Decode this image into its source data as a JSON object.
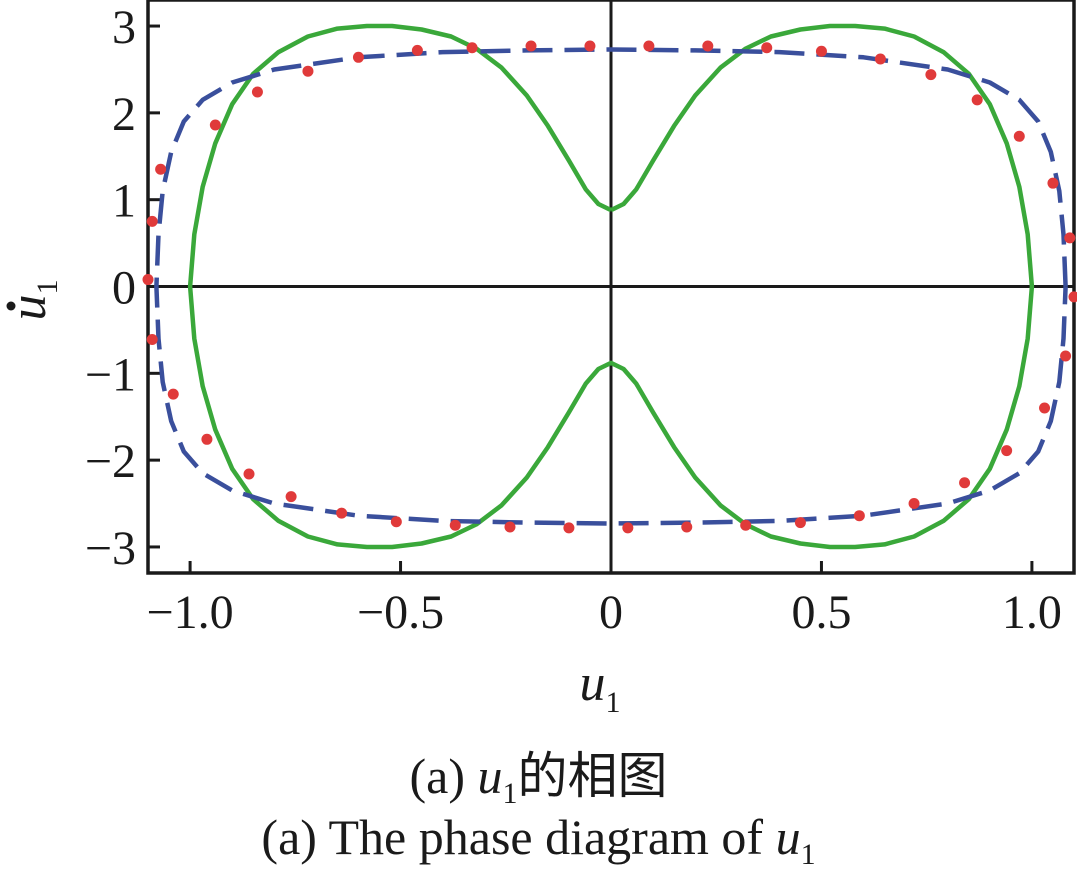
{
  "caption_zh": {
    "prefix": "(a) ",
    "var": "u",
    "sub": "1",
    "suffix": "的相图"
  },
  "caption_en": {
    "prefix": "(a) The phase diagram of ",
    "var": "u",
    "sub": "1"
  },
  "chart_data": {
    "type": "line",
    "title": "",
    "xlabel": {
      "var": "u",
      "sub": "1"
    },
    "ylabel": {
      "var": "u",
      "sub": "1",
      "dot": true
    },
    "xlim": [
      -1.1,
      1.1
    ],
    "ylim": [
      -3.3,
      3.3
    ],
    "xticks": [
      -1.0,
      -0.5,
      0,
      0.5,
      1.0
    ],
    "xtick_labels": [
      "−1.0",
      "−0.5",
      "0",
      "0.5",
      "1.0"
    ],
    "yticks": [
      3,
      2,
      1,
      0,
      -1,
      -2,
      -3
    ],
    "ytick_labels": [
      "3",
      "2",
      "1",
      "0",
      "−1",
      "−2",
      "−3"
    ],
    "grid": false,
    "series": [
      {
        "style": "solid",
        "color": "#3aa83a",
        "points": [
          [
            0,
            0.88
          ],
          [
            0.03,
            0.95
          ],
          [
            0.06,
            1.12
          ],
          [
            0.1,
            1.45
          ],
          [
            0.15,
            1.85
          ],
          [
            0.2,
            2.2
          ],
          [
            0.26,
            2.52
          ],
          [
            0.32,
            2.74
          ],
          [
            0.38,
            2.88
          ],
          [
            0.45,
            2.96
          ],
          [
            0.52,
            3.0
          ],
          [
            0.58,
            3.0
          ],
          [
            0.65,
            2.97
          ],
          [
            0.72,
            2.88
          ],
          [
            0.79,
            2.7
          ],
          [
            0.85,
            2.45
          ],
          [
            0.9,
            2.1
          ],
          [
            0.94,
            1.65
          ],
          [
            0.97,
            1.15
          ],
          [
            0.99,
            0.6
          ],
          [
            1.0,
            0
          ],
          [
            0.99,
            -0.6
          ],
          [
            0.97,
            -1.15
          ],
          [
            0.94,
            -1.65
          ],
          [
            0.9,
            -2.1
          ],
          [
            0.85,
            -2.45
          ],
          [
            0.79,
            -2.7
          ],
          [
            0.72,
            -2.88
          ],
          [
            0.65,
            -2.97
          ],
          [
            0.58,
            -3.0
          ],
          [
            0.52,
            -3.0
          ],
          [
            0.45,
            -2.96
          ],
          [
            0.38,
            -2.88
          ],
          [
            0.32,
            -2.74
          ],
          [
            0.26,
            -2.52
          ],
          [
            0.2,
            -2.2
          ],
          [
            0.15,
            -1.85
          ],
          [
            0.1,
            -1.45
          ],
          [
            0.06,
            -1.12
          ],
          [
            0.03,
            -0.95
          ],
          [
            0,
            -0.88
          ],
          [
            -0.03,
            -0.95
          ],
          [
            -0.06,
            -1.12
          ],
          [
            -0.1,
            -1.45
          ],
          [
            -0.15,
            -1.85
          ],
          [
            -0.2,
            -2.2
          ],
          [
            -0.26,
            -2.52
          ],
          [
            -0.32,
            -2.74
          ],
          [
            -0.38,
            -2.88
          ],
          [
            -0.45,
            -2.96
          ],
          [
            -0.52,
            -3.0
          ],
          [
            -0.58,
            -3.0
          ],
          [
            -0.65,
            -2.97
          ],
          [
            -0.72,
            -2.88
          ],
          [
            -0.79,
            -2.7
          ],
          [
            -0.85,
            -2.45
          ],
          [
            -0.9,
            -2.1
          ],
          [
            -0.94,
            -1.65
          ],
          [
            -0.97,
            -1.15
          ],
          [
            -0.99,
            -0.6
          ],
          [
            -1.0,
            0
          ],
          [
            -0.99,
            0.6
          ],
          [
            -0.97,
            1.15
          ],
          [
            -0.94,
            1.65
          ],
          [
            -0.9,
            2.1
          ],
          [
            -0.85,
            2.45
          ],
          [
            -0.79,
            2.7
          ],
          [
            -0.72,
            2.88
          ],
          [
            -0.65,
            2.97
          ],
          [
            -0.58,
            3.0
          ],
          [
            -0.52,
            3.0
          ],
          [
            -0.45,
            2.96
          ],
          [
            -0.38,
            2.88
          ],
          [
            -0.32,
            2.74
          ],
          [
            -0.26,
            2.52
          ],
          [
            -0.2,
            2.2
          ],
          [
            -0.15,
            1.85
          ],
          [
            -0.1,
            1.45
          ],
          [
            -0.06,
            1.12
          ],
          [
            -0.03,
            0.95
          ],
          [
            0,
            0.88
          ]
        ]
      },
      {
        "style": "dashed",
        "color": "#3a4f9c",
        "points": [
          [
            1.08,
            0
          ],
          [
            1.075,
            0.6
          ],
          [
            1.065,
            1.1
          ],
          [
            1.045,
            1.55
          ],
          [
            1.015,
            1.9
          ],
          [
            0.97,
            2.15
          ],
          [
            0.9,
            2.35
          ],
          [
            0.8,
            2.5
          ],
          [
            0.6,
            2.64
          ],
          [
            0.4,
            2.7
          ],
          [
            0.2,
            2.72
          ],
          [
            0,
            2.73
          ],
          [
            -0.2,
            2.72
          ],
          [
            -0.4,
            2.7
          ],
          [
            -0.6,
            2.64
          ],
          [
            -0.8,
            2.5
          ],
          [
            -0.9,
            2.35
          ],
          [
            -0.97,
            2.15
          ],
          [
            -1.015,
            1.9
          ],
          [
            -1.045,
            1.55
          ],
          [
            -1.065,
            1.1
          ],
          [
            -1.075,
            0.6
          ],
          [
            -1.08,
            0
          ],
          [
            -1.075,
            -0.6
          ],
          [
            -1.065,
            -1.1
          ],
          [
            -1.045,
            -1.55
          ],
          [
            -1.015,
            -1.9
          ],
          [
            -0.97,
            -2.15
          ],
          [
            -0.9,
            -2.35
          ],
          [
            -0.8,
            -2.5
          ],
          [
            -0.6,
            -2.64
          ],
          [
            -0.4,
            -2.7
          ],
          [
            -0.2,
            -2.72
          ],
          [
            0,
            -2.73
          ],
          [
            0.2,
            -2.72
          ],
          [
            0.4,
            -2.7
          ],
          [
            0.6,
            -2.64
          ],
          [
            0.8,
            -2.5
          ],
          [
            0.9,
            -2.35
          ],
          [
            0.97,
            -2.15
          ],
          [
            1.015,
            -1.9
          ],
          [
            1.045,
            -1.55
          ],
          [
            1.065,
            -1.1
          ],
          [
            1.075,
            -0.6
          ],
          [
            1.08,
            0
          ]
        ]
      },
      {
        "style": "markers",
        "color": "#e03a3a",
        "points": [
          [
            -1.1,
            0.08
          ],
          [
            -1.09,
            0.75
          ],
          [
            -1.07,
            1.35
          ],
          [
            -0.94,
            1.86
          ],
          [
            -0.84,
            2.24
          ],
          [
            -0.72,
            2.48
          ],
          [
            -0.6,
            2.64
          ],
          [
            -0.46,
            2.72
          ],
          [
            -0.33,
            2.75
          ],
          [
            -0.19,
            2.77
          ],
          [
            -0.05,
            2.77
          ],
          [
            0.09,
            2.77
          ],
          [
            0.23,
            2.77
          ],
          [
            0.37,
            2.75
          ],
          [
            0.5,
            2.71
          ],
          [
            0.64,
            2.62
          ],
          [
            0.76,
            2.44
          ],
          [
            0.87,
            2.15
          ],
          [
            0.97,
            1.73
          ],
          [
            1.05,
            1.19
          ],
          [
            1.09,
            0.56
          ],
          [
            1.1,
            -0.12
          ],
          [
            1.08,
            -0.8
          ],
          [
            1.03,
            -1.4
          ],
          [
            0.94,
            -1.89
          ],
          [
            0.84,
            -2.26
          ],
          [
            0.72,
            -2.5
          ],
          [
            0.59,
            -2.64
          ],
          [
            0.45,
            -2.72
          ],
          [
            0.32,
            -2.75
          ],
          [
            0.18,
            -2.77
          ],
          [
            0.04,
            -2.78
          ],
          [
            -0.1,
            -2.78
          ],
          [
            -0.24,
            -2.77
          ],
          [
            -0.37,
            -2.75
          ],
          [
            -0.51,
            -2.71
          ],
          [
            -0.64,
            -2.61
          ],
          [
            -0.76,
            -2.42
          ],
          [
            -0.86,
            -2.16
          ],
          [
            -0.96,
            -1.76
          ],
          [
            -1.04,
            -1.24
          ],
          [
            -1.09,
            -0.61
          ]
        ]
      }
    ]
  }
}
